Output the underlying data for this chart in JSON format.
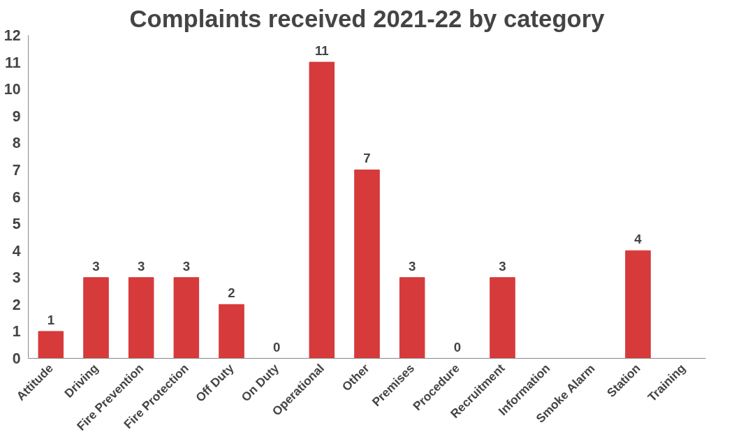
{
  "chart_data": {
    "type": "bar",
    "title": "Complaints received 2021-22 by category",
    "categories": [
      "Attitude",
      "Driving",
      "Fire Prevention",
      "Fire Protection",
      "Off Duty",
      "On Duty",
      "Operational",
      "Other",
      "Premises",
      "Procedure",
      "Recruitment",
      "Information",
      "Smoke Alarm",
      "Station",
      "Training"
    ],
    "values": [
      1,
      3,
      3,
      3,
      2,
      0,
      11,
      7,
      3,
      0,
      3,
      null,
      null,
      4,
      null
    ],
    "value_labels": [
      "1",
      "3",
      "3",
      "3",
      "2",
      "0",
      "11",
      "7",
      "3",
      "0",
      "3",
      null,
      null,
      "4",
      null
    ],
    "color": "#d63a3a",
    "ylim": [
      0,
      12
    ],
    "yticks": [
      0,
      1,
      2,
      3,
      4,
      5,
      6,
      7,
      8,
      9,
      10,
      11,
      12
    ],
    "grid": false
  }
}
